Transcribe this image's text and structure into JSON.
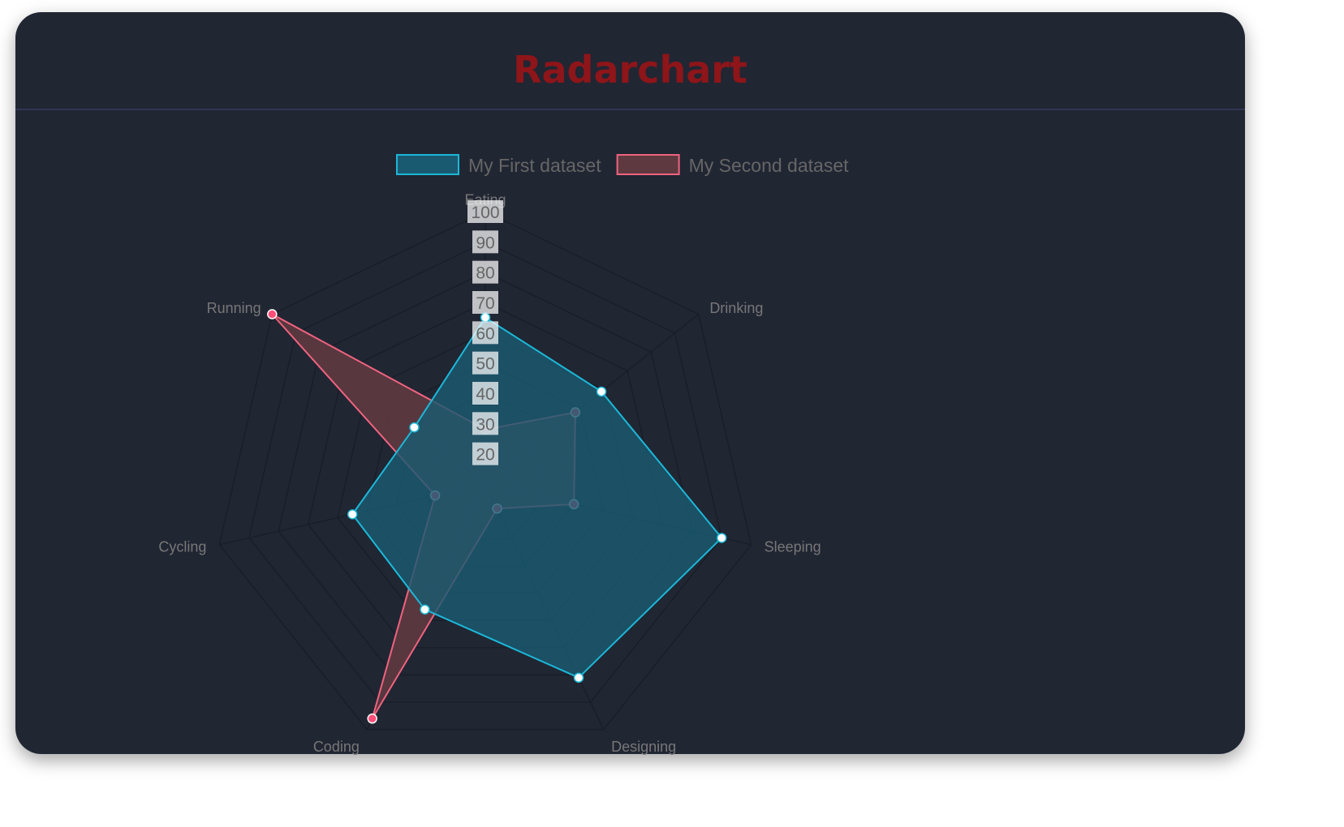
{
  "header": {
    "title": "Radarchart"
  },
  "chart_data": {
    "type": "radar",
    "labels": [
      "Eating",
      "Drinking",
      "Sleeping",
      "Designing",
      "Coding",
      "Cycling",
      "Running"
    ],
    "ticks": [
      "20",
      "30",
      "40",
      "50",
      "60",
      "70",
      "80",
      "90",
      "100"
    ],
    "rlim": [
      10,
      100
    ],
    "grid": true,
    "legend_position": "top",
    "series": [
      {
        "name": "My First dataset",
        "values": [
          65,
          59,
          90,
          81,
          56,
          55,
          40
        ],
        "border_color": "#1cb8d8",
        "fill_color": "#1a5a70",
        "point_color": "#ffffff"
      },
      {
        "name": "My Second dataset",
        "values": [
          28,
          48,
          40,
          19,
          96,
          27,
          100
        ],
        "border_color": "#f0637f",
        "fill_color": "#5e3a40",
        "point_color": "#ff4f78"
      }
    ]
  }
}
